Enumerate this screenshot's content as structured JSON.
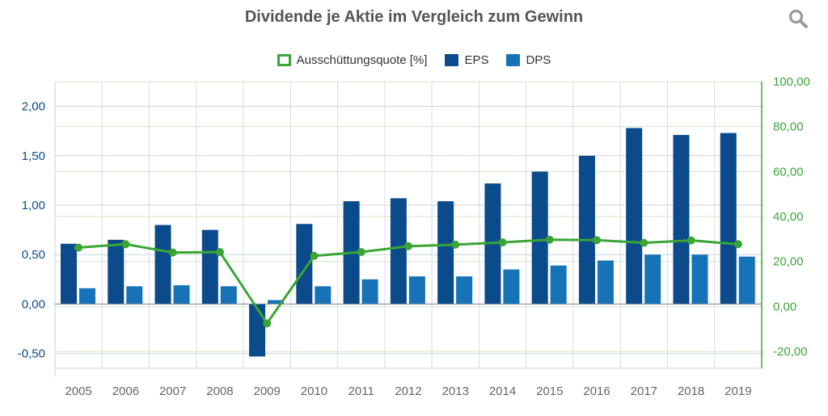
{
  "title": "Dividende je Aktie im Vergleich zum Gewinn",
  "icons": {
    "search": "search-icon"
  },
  "legend": [
    {
      "label": "Ausschüttungsquote [%]",
      "color": "#3aa535",
      "kind": "line"
    },
    {
      "label": "EPS",
      "color": "#0b4a8b",
      "kind": "bar"
    },
    {
      "label": "DPS",
      "color": "#1673b7",
      "kind": "bar"
    }
  ],
  "chart_data": {
    "type": "bar+line",
    "title": "Dividende je Aktie im Vergleich zum Gewinn",
    "categories": [
      "2005",
      "2006",
      "2007",
      "2008",
      "2009",
      "2010",
      "2011",
      "2012",
      "2013",
      "2014",
      "2015",
      "2016",
      "2017",
      "2018",
      "2019"
    ],
    "series": [
      {
        "name": "EPS",
        "type": "bar",
        "axis": "left",
        "color": "#0b4a8b",
        "values": [
          0.61,
          0.65,
          0.8,
          0.75,
          -0.53,
          0.81,
          1.04,
          1.07,
          1.04,
          1.22,
          1.34,
          1.5,
          1.78,
          1.71,
          1.73
        ]
      },
      {
        "name": "DPS",
        "type": "bar",
        "axis": "left",
        "color": "#1673b7",
        "values": [
          0.16,
          0.18,
          0.19,
          0.18,
          0.04,
          0.18,
          0.25,
          0.28,
          0.28,
          0.35,
          0.39,
          0.44,
          0.5,
          0.5,
          0.48
        ]
      },
      {
        "name": "Ausschüttungsquote [%]",
        "type": "line",
        "axis": "right",
        "color": "#3aa535",
        "values": [
          26.2,
          27.7,
          24.0,
          24.2,
          -7.5,
          22.5,
          24.2,
          26.8,
          27.5,
          28.5,
          29.7,
          29.5,
          28.3,
          29.4,
          27.7
        ]
      }
    ],
    "left_axis": {
      "min": -0.65,
      "max": 2.25,
      "ticks": [
        2.0,
        1.5,
        1.0,
        0.5,
        0.0,
        -0.5
      ],
      "tick_labels": [
        "2,00",
        "1,50",
        "1,00",
        "0,50",
        "0,00",
        "-0,50"
      ],
      "color": "#0b4a8b"
    },
    "right_axis": {
      "min": -27.5,
      "max": 100,
      "ticks": [
        100,
        80,
        60,
        40,
        20,
        0,
        -20
      ],
      "tick_labels": [
        "100,00",
        "80,00",
        "60,00",
        "40,00",
        "20,00",
        "0,00",
        "-20,00"
      ],
      "color": "#3aa535"
    },
    "grid": true,
    "legend_position": "top-center"
  }
}
